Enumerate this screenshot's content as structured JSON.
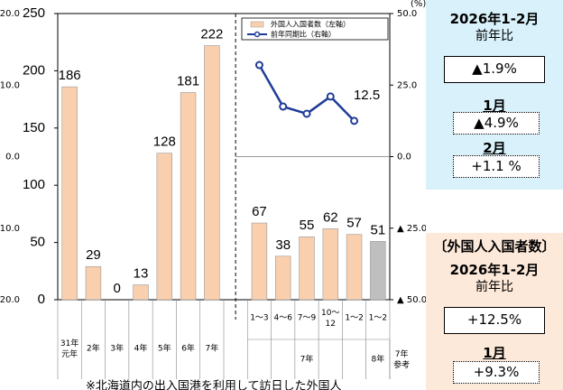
{
  "chart_data": {
    "type": "bar",
    "categories": [
      "31年\n元年",
      "2年",
      "3年",
      "4年",
      "5年",
      "6年",
      "7年",
      "1～3",
      "4～6",
      "7～9",
      "10～\n12",
      "1～2",
      "1～2"
    ],
    "category_groups": [
      {
        "label": "7年",
        "span": 5
      },
      {
        "label": "8年",
        "span": 1
      },
      {
        "label": "7年\n参考",
        "span": 1
      }
    ],
    "series": [
      {
        "name": "外国人入国者数（左軸）",
        "type": "bar",
        "color": "#f9cfae",
        "colors": [
          "#f9cfae",
          "#f9cfae",
          "#f9cfae",
          "#f9cfae",
          "#f9cfae",
          "#f9cfae",
          "#f9cfae",
          "#f9cfae",
          "#f9cfae",
          "#f9cfae",
          "#f9cfae",
          "#f9cfae",
          "#bfbfbf"
        ],
        "values": [
          186,
          29,
          0,
          13,
          128,
          181,
          222,
          67,
          38,
          55,
          62,
          57,
          51
        ]
      },
      {
        "name": "前年同期比（右軸）",
        "type": "line",
        "axis": "y2",
        "color": "#1f3c99",
        "values": [
          null,
          null,
          null,
          null,
          null,
          null,
          null,
          32,
          17.5,
          15,
          21,
          12.5,
          null
        ],
        "show_label": [
          false,
          false,
          false,
          false,
          false,
          false,
          false,
          false,
          false,
          false,
          false,
          true,
          false
        ]
      }
    ],
    "ylim": [
      0,
      250
    ],
    "yticks": [
      0,
      50,
      100,
      150,
      200,
      250
    ],
    "y2lim": [
      -50,
      50
    ],
    "y2ticks": [
      {
        "value": 50,
        "label": "50.0"
      },
      {
        "value": 25,
        "label": "25.0"
      },
      {
        "value": 0,
        "label": "0.0"
      },
      {
        "value": -25,
        "label": "▲ 25.0"
      },
      {
        "value": -50,
        "label": "▲ 50.0"
      }
    ],
    "y2unit": "(%)",
    "left_partial_axis": [
      "20.0",
      "10.0",
      "0.0",
      "▲ 10.0",
      "▲ 20.0"
    ],
    "note": "※北海道内の出入国港を利用して訪日した外国人"
  },
  "panel_total": {
    "period": "2026年1-2月",
    "label": "前年比",
    "value": "▲1.9%",
    "months": [
      {
        "month": "1月",
        "value": "▲4.9%"
      },
      {
        "month": "2月",
        "value": "+1.1 %"
      }
    ]
  },
  "panel_foreign": {
    "title": "〔外国人入国者数〕",
    "period": "2026年1-2月",
    "label": "前年比",
    "value": "+12.5%",
    "months": [
      {
        "month": "1月",
        "value": "+9.3%"
      }
    ]
  }
}
